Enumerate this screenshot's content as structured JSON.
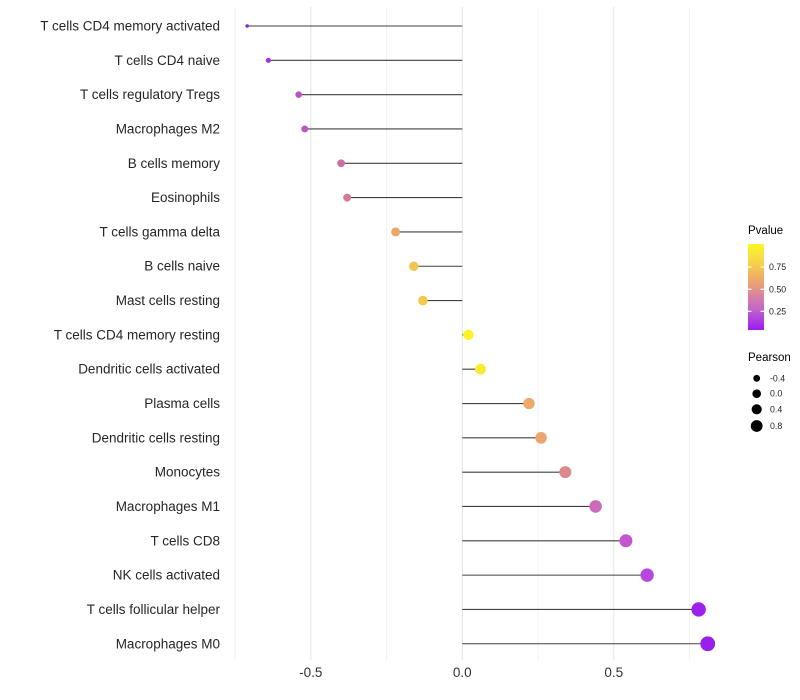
{
  "chart_data": {
    "type": "scatter",
    "style": "horizontal-lollipop",
    "title": "",
    "xlabel": "",
    "ylabel": "",
    "xlim": [
      -0.8,
      0.9
    ],
    "grid": "major_and_minor_vertical",
    "x_ticks": [
      {
        "label": "-0.5",
        "value": -0.5
      },
      {
        "label": "0.0",
        "value": 0.0
      },
      {
        "label": "0.5",
        "value": 0.5
      }
    ],
    "x_minor_grid_values": [
      -0.75,
      -0.25,
      0.25,
      0.75
    ],
    "points": [
      {
        "label": "T cells CD4 memory activated",
        "pearson": -0.71,
        "color": "#8129cf",
        "radius": 1.8
      },
      {
        "label": "T cells CD4 naive",
        "pearson": -0.64,
        "color": "#a236d6",
        "radius": 2.6
      },
      {
        "label": "T cells regulatory  Tregs",
        "pearson": -0.54,
        "color": "#bb54cb",
        "radius": 3.3
      },
      {
        "label": "Macrophages M2",
        "pearson": -0.52,
        "color": "#bd57c6",
        "radius": 3.5
      },
      {
        "label": "B cells memory",
        "pearson": -0.4,
        "color": "#cd6fa4",
        "radius": 3.9
      },
      {
        "label": "Eosinophils",
        "pearson": -0.38,
        "color": "#d47d92",
        "radius": 4.0
      },
      {
        "label": "T cells gamma delta",
        "pearson": -0.22,
        "color": "#eba765",
        "radius": 4.5
      },
      {
        "label": "B cells naive",
        "pearson": -0.16,
        "color": "#f1c554",
        "radius": 4.7
      },
      {
        "label": "Mast cells resting",
        "pearson": -0.13,
        "color": "#f2cb4e",
        "radius": 4.8
      },
      {
        "label": "T cells CD4 memory resting",
        "pearson": 0.02,
        "color": "#f9f224",
        "radius": 5.2
      },
      {
        "label": "Dendritic cells activated",
        "pearson": 0.06,
        "color": "#f7ec31",
        "radius": 5.4
      },
      {
        "label": "Plasma cells",
        "pearson": 0.22,
        "color": "#edaa6b",
        "radius": 5.7
      },
      {
        "label": "Dendritic cells resting",
        "pearson": 0.26,
        "color": "#eca56f",
        "radius": 5.8
      },
      {
        "label": "Monocytes",
        "pearson": 0.34,
        "color": "#dd8a8e",
        "radius": 6.0
      },
      {
        "label": "Macrophages M1",
        "pearson": 0.44,
        "color": "#cc6cb8",
        "radius": 6.3
      },
      {
        "label": "T cells CD8",
        "pearson": 0.54,
        "color": "#c355cf",
        "radius": 6.5
      },
      {
        "label": "NK cells activated",
        "pearson": 0.61,
        "color": "#b747dd",
        "radius": 6.7
      },
      {
        "label": "T cells follicular helper",
        "pearson": 0.78,
        "color": "#9c22e9",
        "radius": 7.2
      },
      {
        "label": "Macrophages M0",
        "pearson": 0.81,
        "color": "#981fec",
        "radius": 7.4
      }
    ],
    "legend": {
      "pvalue": {
        "title": "Pvalue",
        "tick_labels": [
          "0.75",
          "0.50",
          "0.25"
        ],
        "gradient_stops": [
          {
            "pos": 0.0,
            "color": "#fbf521"
          },
          {
            "pos": 0.1,
            "color": "#f8e73c"
          },
          {
            "pos": 0.25,
            "color": "#f5cd4c"
          },
          {
            "pos": 0.4,
            "color": "#efaa68"
          },
          {
            "pos": 0.5,
            "color": "#e69a7e"
          },
          {
            "pos": 0.62,
            "color": "#d57da8"
          },
          {
            "pos": 0.75,
            "color": "#c369c5"
          },
          {
            "pos": 0.88,
            "color": "#ae3fe0"
          },
          {
            "pos": 1.0,
            "color": "#9c1bf4"
          }
        ]
      },
      "pearson": {
        "title": "Pearson",
        "size_labels": [
          "-0.4",
          "0.0",
          "0.4",
          "0.8"
        ],
        "size_radii": [
          3.4,
          4.3,
          5.1,
          5.9
        ],
        "dot_color": "#000000"
      }
    },
    "colors": {
      "background": "#ffffff",
      "stem": "#404040",
      "grid_major": "#e3e3e3",
      "grid_minor": "#f1f1f1",
      "axis_text": "#333333",
      "category_text": "#262626"
    }
  }
}
